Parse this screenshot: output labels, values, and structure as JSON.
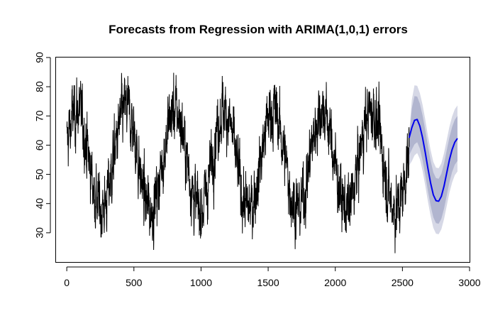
{
  "chart_data": {
    "type": "line",
    "title": "Forecasts from Regression with ARIMA(1,0,1) errors",
    "xlabel": "",
    "ylabel": "",
    "xlim": [
      -80,
      3000
    ],
    "ylim": [
      20,
      90
    ],
    "x_ticks": [
      0,
      500,
      1000,
      1500,
      2000,
      2500,
      3000
    ],
    "y_ticks": [
      30,
      40,
      50,
      60,
      70,
      80,
      90
    ],
    "grid": false,
    "legend": "none",
    "series": [
      {
        "role": "observed",
        "color": "#000000",
        "x_start": 1,
        "x_end": 2550,
        "n": 2550,
        "period": 365.25,
        "mean": 55,
        "amplitude": 17,
        "phase_peak_x": 75,
        "noise_sd": 6,
        "seed": 12345,
        "y_min_seen": 23,
        "y_max_seen": 88
      },
      {
        "role": "forecast_mean",
        "color": "#0000ee",
        "x": [
          2550,
          2570,
          2590,
          2610,
          2630,
          2650,
          2670,
          2690,
          2710,
          2730,
          2750,
          2770,
          2790,
          2810,
          2830,
          2850,
          2870,
          2890,
          2910
        ],
        "y": [
          62.5,
          66.0,
          68.5,
          68.8,
          66.5,
          62.5,
          57.5,
          52.0,
          47.0,
          43.0,
          41.0,
          40.8,
          42.5,
          46.0,
          50.5,
          55.0,
          58.5,
          61.0,
          62.3
        ]
      }
    ],
    "intervals": [
      {
        "level": 95,
        "color": "#d6d8e6",
        "x": [
          2550,
          2570,
          2590,
          2610,
          2630,
          2650,
          2670,
          2690,
          2710,
          2730,
          2750,
          2770,
          2790,
          2810,
          2830,
          2850,
          2870,
          2890,
          2910
        ],
        "lower": [
          53,
          54.5,
          56.5,
          57.3,
          55.2,
          51.2,
          46.2,
          40.7,
          35.7,
          31.7,
          29.7,
          29.5,
          31.2,
          34.7,
          39.2,
          43.7,
          47.2,
          49.7,
          51.0
        ],
        "upper": [
          63.5,
          75.5,
          80.5,
          80.3,
          77.8,
          73.8,
          68.8,
          63.3,
          58.3,
          54.3,
          52.3,
          52.1,
          53.8,
          57.3,
          61.8,
          66.3,
          69.8,
          72.3,
          73.6
        ]
      },
      {
        "level": 80,
        "color": "#b1b5cf",
        "x": [
          2550,
          2570,
          2590,
          2610,
          2630,
          2650,
          2670,
          2690,
          2710,
          2730,
          2750,
          2770,
          2790,
          2810,
          2830,
          2850,
          2870,
          2890,
          2910
        ],
        "lower": [
          56.5,
          58.5,
          60.3,
          61.0,
          58.8,
          54.8,
          49.8,
          44.3,
          39.3,
          35.3,
          33.3,
          33.1,
          34.8,
          38.3,
          42.8,
          47.3,
          50.8,
          53.3,
          54.6
        ],
        "upper": [
          62.8,
          72.5,
          76.8,
          76.6,
          74.2,
          70.2,
          65.2,
          59.7,
          54.7,
          50.7,
          48.7,
          48.5,
          50.2,
          53.7,
          58.2,
          62.7,
          66.2,
          68.7,
          70.0
        ]
      }
    ]
  }
}
